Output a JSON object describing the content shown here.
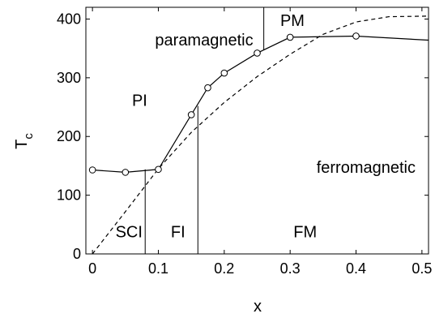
{
  "chart_data": {
    "type": "line",
    "xlabel": "x",
    "ylabel_main": "T",
    "ylabel_sub": "c",
    "xlim": [
      -0.01,
      0.51
    ],
    "ylim": [
      0,
      420
    ],
    "xticks": [
      0,
      0.1,
      0.2,
      0.3,
      0.4,
      0.5
    ],
    "xtick_labels": [
      "0",
      "0.1",
      "0.2",
      "0.3",
      "0.4",
      "0.5"
    ],
    "yticks": [
      0,
      100,
      200,
      300,
      400
    ],
    "ytick_labels": [
      "0",
      "100",
      "200",
      "300",
      "400"
    ],
    "series": [
      {
        "style": "solid-markers",
        "points": [
          [
            0,
            143
          ],
          [
            0.05,
            139
          ],
          [
            0.1,
            144
          ],
          [
            0.15,
            237
          ],
          [
            0.175,
            283
          ],
          [
            0.2,
            308
          ],
          [
            0.25,
            342
          ],
          [
            0.3,
            369
          ],
          [
            0.4,
            371
          ]
        ],
        "line_extra": [
          [
            0.51,
            364
          ]
        ]
      },
      {
        "style": "dashed",
        "points": [
          [
            0,
            0
          ],
          [
            0.05,
            72
          ],
          [
            0.1,
            145
          ],
          [
            0.15,
            207
          ],
          [
            0.2,
            258
          ],
          [
            0.25,
            302
          ],
          [
            0.3,
            340
          ],
          [
            0.35,
            374
          ],
          [
            0.4,
            395
          ],
          [
            0.45,
            404
          ],
          [
            0.51,
            405
          ]
        ]
      }
    ],
    "boundaries": [
      {
        "x": 0.08,
        "y0": 0,
        "y1": 144
      },
      {
        "x": 0.16,
        "y0": 0,
        "y1": 252
      },
      {
        "x": 0.26,
        "y0": 347,
        "y1": 420
      }
    ],
    "regions": [
      {
        "label": "paramagnetic",
        "x": 0.095,
        "y": 365
      },
      {
        "label": "PM",
        "x": 0.285,
        "y": 398
      },
      {
        "label": "PI",
        "x": 0.06,
        "y": 262
      },
      {
        "label": "ferromagnetic",
        "x": 0.34,
        "y": 148
      },
      {
        "label": "SCI",
        "x": 0.035,
        "y": 38
      },
      {
        "label": "FI",
        "x": 0.119,
        "y": 38
      },
      {
        "label": "FM",
        "x": 0.305,
        "y": 38
      }
    ]
  }
}
